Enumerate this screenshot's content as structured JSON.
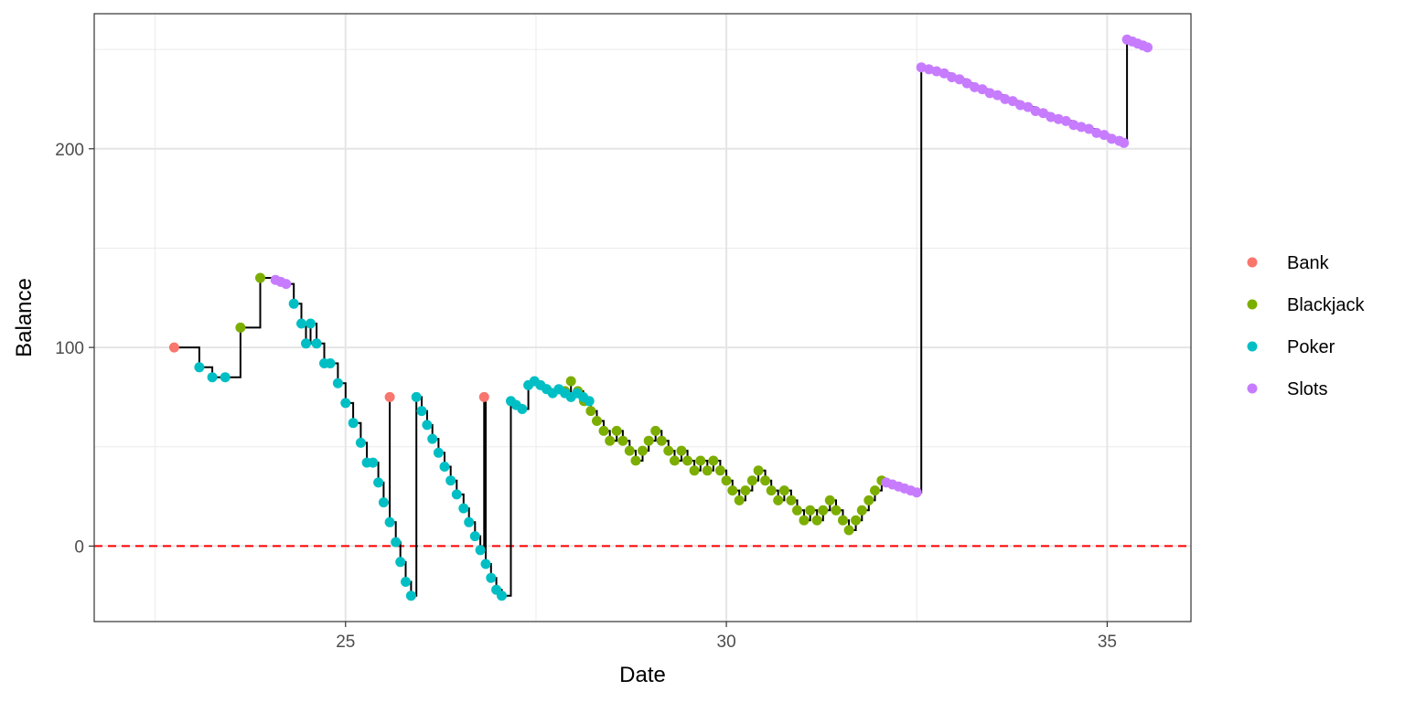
{
  "chart_data": {
    "type": "scatter",
    "xlabel": "Date",
    "ylabel": "Balance",
    "xlim": [
      21.7,
      36.1
    ],
    "ylim": [
      -38,
      268
    ],
    "x_ticks": [
      25,
      30,
      35
    ],
    "y_ticks": [
      0,
      100,
      200
    ],
    "x_minor_ticks": [
      22.5,
      27.5,
      32.5
    ],
    "y_minor_ticks": [
      50,
      150,
      250
    ],
    "grid": true,
    "legend_position": "right",
    "step_line_color": "#000000",
    "reference_line": {
      "y": 0,
      "color": "#ff0000",
      "style": "dashed"
    },
    "series": [
      {
        "name": "Bank",
        "color": "#F8766D",
        "points": [
          [
            22.75,
            100
          ],
          [
            25.58,
            75
          ],
          [
            26.82,
            75
          ]
        ]
      },
      {
        "name": "Blackjack",
        "color": "#7CAE00",
        "points": [
          [
            23.62,
            110
          ],
          [
            23.88,
            135
          ],
          [
            27.88,
            78
          ],
          [
            27.96,
            83
          ],
          [
            28.05,
            78
          ],
          [
            28.13,
            73
          ],
          [
            28.22,
            68
          ],
          [
            28.3,
            63
          ],
          [
            28.39,
            58
          ],
          [
            28.47,
            53
          ],
          [
            28.56,
            58
          ],
          [
            28.64,
            53
          ],
          [
            28.73,
            48
          ],
          [
            28.81,
            43
          ],
          [
            28.9,
            48
          ],
          [
            28.98,
            53
          ],
          [
            29.07,
            58
          ],
          [
            29.15,
            53
          ],
          [
            29.24,
            48
          ],
          [
            29.32,
            43
          ],
          [
            29.41,
            48
          ],
          [
            29.49,
            43
          ],
          [
            29.58,
            38
          ],
          [
            29.66,
            43
          ],
          [
            29.75,
            38
          ],
          [
            29.83,
            43
          ],
          [
            29.92,
            38
          ],
          [
            30.0,
            33
          ],
          [
            30.08,
            28
          ],
          [
            30.17,
            23
          ],
          [
            30.25,
            28
          ],
          [
            30.34,
            33
          ],
          [
            30.42,
            38
          ],
          [
            30.51,
            33
          ],
          [
            30.59,
            28
          ],
          [
            30.68,
            23
          ],
          [
            30.76,
            28
          ],
          [
            30.85,
            23
          ],
          [
            30.93,
            18
          ],
          [
            31.02,
            13
          ],
          [
            31.1,
            18
          ],
          [
            31.19,
            13
          ],
          [
            31.27,
            18
          ],
          [
            31.36,
            23
          ],
          [
            31.44,
            18
          ],
          [
            31.53,
            13
          ],
          [
            31.61,
            8
          ],
          [
            31.7,
            13
          ],
          [
            31.78,
            18
          ],
          [
            31.87,
            23
          ],
          [
            31.95,
            28
          ],
          [
            32.04,
            33
          ]
        ]
      },
      {
        "name": "Poker",
        "color": "#00BFC4",
        "points": [
          [
            23.08,
            90
          ],
          [
            23.25,
            85
          ],
          [
            23.42,
            85
          ],
          [
            24.32,
            122
          ],
          [
            24.42,
            112
          ],
          [
            24.48,
            102
          ],
          [
            24.54,
            112
          ],
          [
            24.62,
            102
          ],
          [
            24.72,
            92
          ],
          [
            24.8,
            92
          ],
          [
            24.9,
            82
          ],
          [
            25.0,
            72
          ],
          [
            25.1,
            62
          ],
          [
            25.2,
            52
          ],
          [
            25.28,
            42
          ],
          [
            25.36,
            42
          ],
          [
            25.43,
            32
          ],
          [
            25.5,
            22
          ],
          [
            25.58,
            12
          ],
          [
            25.66,
            2
          ],
          [
            25.72,
            -8
          ],
          [
            25.79,
            -18
          ],
          [
            25.86,
            -25
          ],
          [
            25.93,
            75
          ],
          [
            26.0,
            68
          ],
          [
            26.07,
            61
          ],
          [
            26.14,
            54
          ],
          [
            26.22,
            47
          ],
          [
            26.3,
            40
          ],
          [
            26.38,
            33
          ],
          [
            26.46,
            26
          ],
          [
            26.55,
            19
          ],
          [
            26.62,
            12
          ],
          [
            26.7,
            5
          ],
          [
            26.77,
            -2
          ],
          [
            26.84,
            -9
          ],
          [
            26.91,
            -16
          ],
          [
            26.98,
            -22
          ],
          [
            27.05,
            -25
          ],
          [
            27.17,
            73
          ],
          [
            27.24,
            71
          ],
          [
            27.32,
            69
          ],
          [
            27.4,
            81
          ],
          [
            27.48,
            83
          ],
          [
            27.56,
            81
          ],
          [
            27.64,
            79
          ],
          [
            27.72,
            77
          ],
          [
            27.8,
            79
          ],
          [
            27.88,
            77
          ],
          [
            27.96,
            75
          ],
          [
            28.04,
            77
          ],
          [
            28.12,
            75
          ],
          [
            28.2,
            73
          ]
        ]
      },
      {
        "name": "Slots",
        "color": "#C77CFF",
        "points": [
          [
            24.08,
            134
          ],
          [
            24.15,
            133
          ],
          [
            24.22,
            132
          ],
          [
            32.1,
            32
          ],
          [
            32.18,
            31
          ],
          [
            32.26,
            30
          ],
          [
            32.34,
            29
          ],
          [
            32.42,
            28
          ],
          [
            32.5,
            27
          ],
          [
            32.56,
            241
          ],
          [
            32.66,
            240
          ],
          [
            32.76,
            239
          ],
          [
            32.86,
            238
          ],
          [
            32.96,
            236
          ],
          [
            33.06,
            235
          ],
          [
            33.16,
            233
          ],
          [
            33.26,
            231
          ],
          [
            33.36,
            230
          ],
          [
            33.46,
            228
          ],
          [
            33.56,
            227
          ],
          [
            33.66,
            225
          ],
          [
            33.76,
            224
          ],
          [
            33.86,
            222
          ],
          [
            33.96,
            221
          ],
          [
            34.06,
            219
          ],
          [
            34.16,
            218
          ],
          [
            34.26,
            216
          ],
          [
            34.36,
            215
          ],
          [
            34.46,
            214
          ],
          [
            34.56,
            212
          ],
          [
            34.66,
            211
          ],
          [
            34.76,
            210
          ],
          [
            34.86,
            208
          ],
          [
            34.96,
            207
          ],
          [
            35.06,
            205
          ],
          [
            35.16,
            204
          ],
          [
            35.22,
            203
          ],
          [
            35.26,
            255
          ],
          [
            35.33,
            254
          ],
          [
            35.4,
            253
          ],
          [
            35.47,
            252
          ],
          [
            35.53,
            251
          ]
        ]
      }
    ]
  }
}
